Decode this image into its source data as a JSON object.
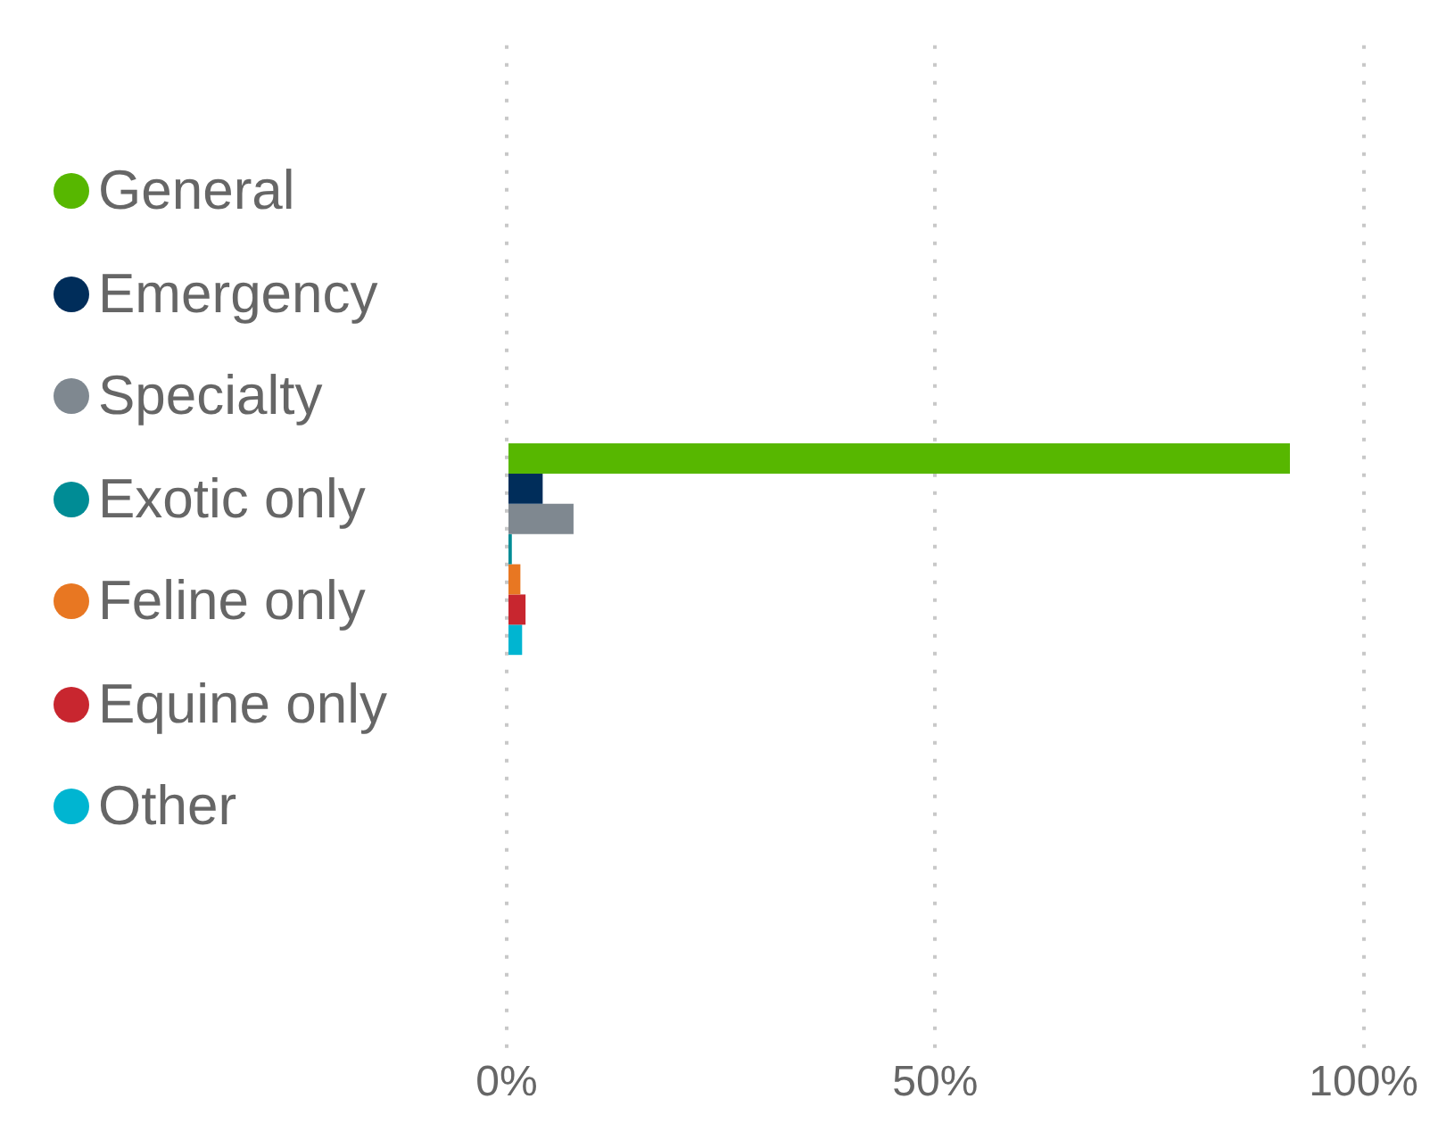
{
  "chart_data": {
    "type": "bar",
    "orientation": "horizontal",
    "categories": [
      null
    ],
    "series": [
      {
        "name": "General",
        "color": "#57b700",
        "values": [
          91.4
        ]
      },
      {
        "name": "Emergency",
        "color": "#002d5a",
        "values": [
          4.2
        ]
      },
      {
        "name": "Specialty",
        "color": "#7f8890",
        "values": [
          7.8
        ]
      },
      {
        "name": "Exotic only",
        "color": "#008c95",
        "values": [
          0.6
        ]
      },
      {
        "name": "Feline only",
        "color": "#e87722",
        "values": [
          1.6
        ]
      },
      {
        "name": "Equine only",
        "color": "#c8262f",
        "values": [
          2.2
        ]
      },
      {
        "name": "Other",
        "color": "#00b5d1",
        "values": [
          1.8
        ]
      }
    ],
    "xlim": [
      0,
      100
    ],
    "xticks": [
      {
        "value": 0,
        "label": "0%"
      },
      {
        "value": 50,
        "label": "50%"
      },
      {
        "value": 100,
        "label": "100%"
      }
    ],
    "grid": "x",
    "legend": "left"
  }
}
